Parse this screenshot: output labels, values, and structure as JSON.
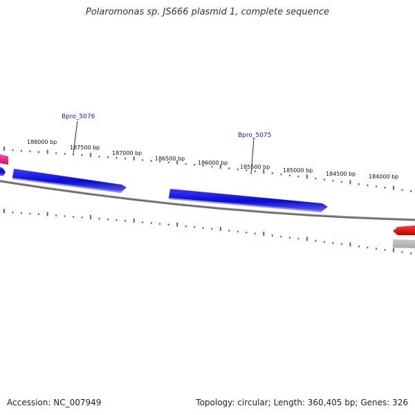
{
  "title": "Polaromonas sp. JS666 plasmid 1, complete sequence",
  "footer": {
    "accession": "Accession: NC_007949",
    "summary": "Topology: circular; Length: 360,405 bp; Genes: 326"
  },
  "colors": {
    "forward_gene": "#1010e0",
    "reverse_gene": "#e01010",
    "partial_gene": "#e0207a",
    "backbone": "#7a7a7a",
    "tick": "#2e8b2e",
    "gene_label": "#1a1aa6"
  },
  "ruler": {
    "labels": [
      "188000 bp",
      "187500 bp",
      "187000 bp",
      "186500 bp",
      "186000 bp",
      "185500 bp",
      "185000 bp",
      "184500 bp",
      "184000 bp"
    ]
  },
  "gene_labels": [
    "Bpro_5076",
    "Bpro_5075"
  ],
  "icons": [
    "gene-arrow-icon"
  ]
}
